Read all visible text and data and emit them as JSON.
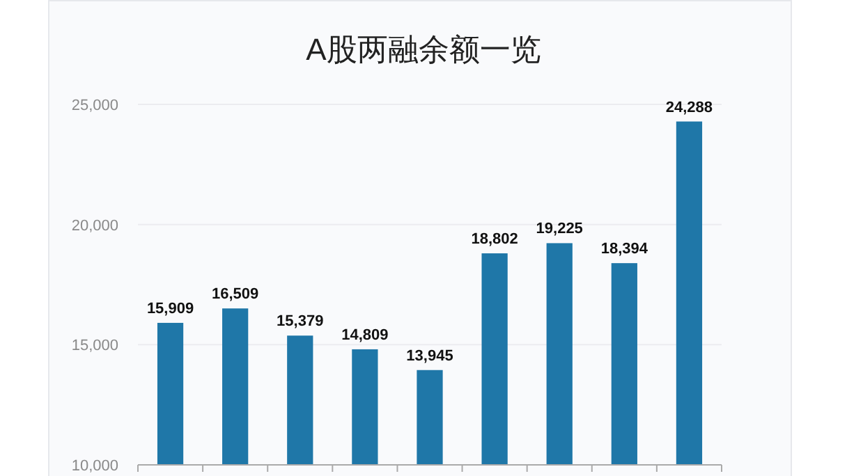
{
  "chart_data": {
    "type": "bar",
    "title": "A股两融余额一览",
    "categories": [
      null,
      null,
      null,
      null,
      null,
      null,
      null,
      null,
      null
    ],
    "values": [
      15909,
      16509,
      15379,
      14809,
      13945,
      18802,
      19225,
      18394,
      24288
    ],
    "color": "#1f77a8",
    "ylim": [
      10000,
      25000
    ],
    "yticks": [
      {
        "value": 10000,
        "label": "10,000"
      },
      {
        "value": 15000,
        "label": "15,000"
      },
      {
        "value": 20000,
        "label": "20,000"
      },
      {
        "value": 25000,
        "label": "25,000"
      }
    ],
    "value_labels": [
      "15,909",
      "16,509",
      "15,379",
      "14,809",
      "13,945",
      "18,802",
      "19,225",
      "18,394",
      "24,288"
    ],
    "grid": "y"
  }
}
